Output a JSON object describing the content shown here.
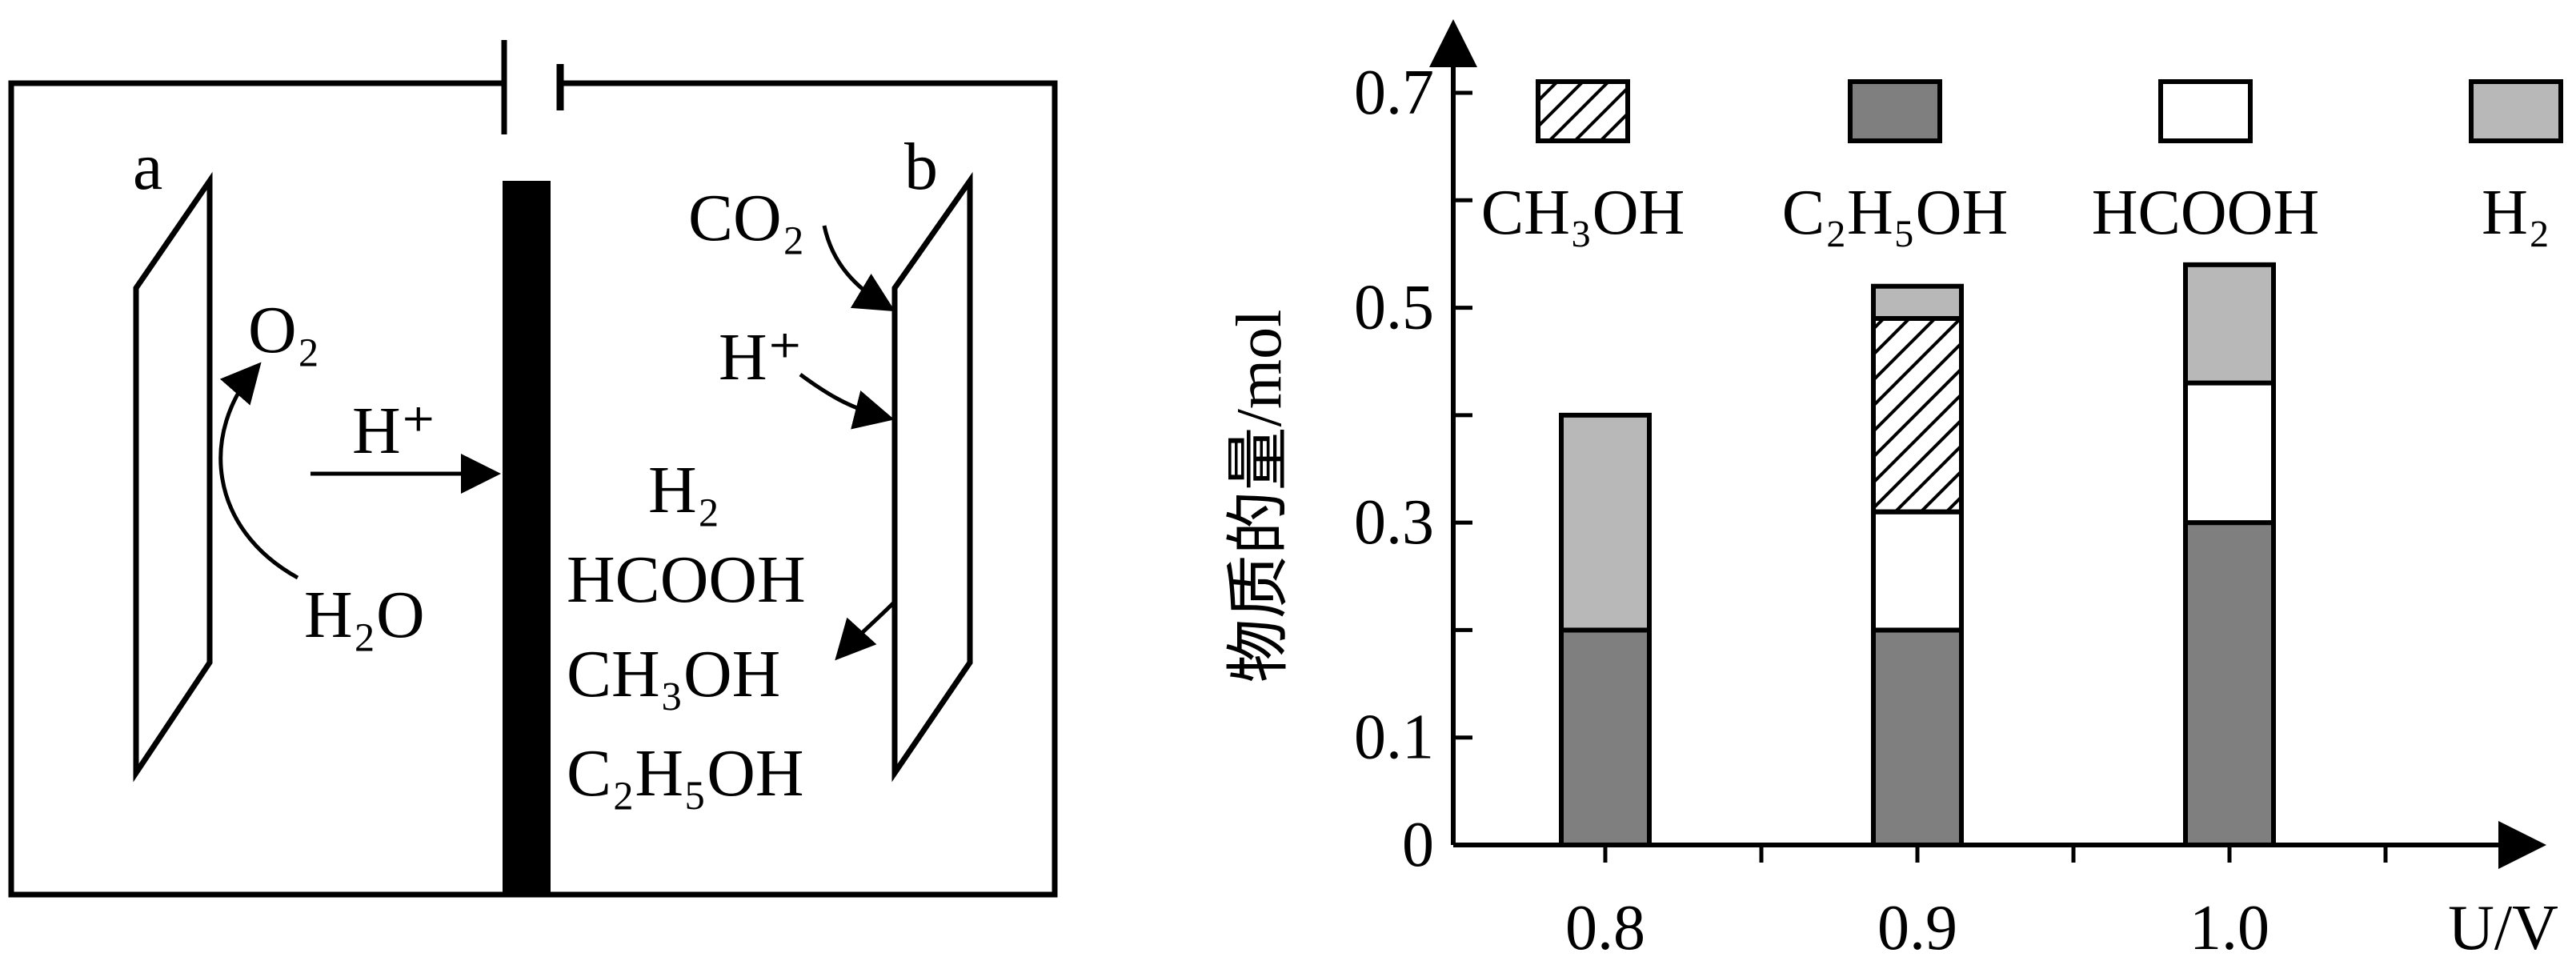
{
  "diagram": {
    "electrode_a": "a",
    "electrode_b": "b",
    "anode_reactant": "H₂O",
    "anode_product": "O₂",
    "ion": "H⁺",
    "cathode_reactant_co2": "CO₂",
    "cathode_reactant_h": "H⁺",
    "products": [
      "H₂",
      "HCOOH",
      "CH₃OH",
      "C₂H₅OH"
    ]
  },
  "chart_data": {
    "type": "bar",
    "stacked": true,
    "categories": [
      "0.8",
      "0.9",
      "1.0"
    ],
    "xlabel": "U/V",
    "ylabel": "物质的量/mol",
    "ylim": [
      0,
      0.7
    ],
    "yticks": [
      "0",
      "0.1",
      "0.3",
      "0.5",
      "0.7"
    ],
    "series": [
      {
        "name": "C₂H₅OH",
        "values": [
          0.2,
          0.2,
          0.3
        ],
        "color": "#7f7f7f",
        "pattern": "solid"
      },
      {
        "name": "HCOOH",
        "values": [
          0,
          0.11,
          0.13
        ],
        "color": "#ffffff",
        "pattern": "solid"
      },
      {
        "name": "CH₃OH",
        "values": [
          0,
          0.18,
          0
        ],
        "color": "#ffffff",
        "pattern": "hatch"
      },
      {
        "name": "H₂",
        "values": [
          0.2,
          0.03,
          0.11
        ],
        "color": "#b8b8b8",
        "pattern": "solid"
      }
    ],
    "legend": [
      "CH₃OH",
      "C₂H₅OH",
      "HCOOH",
      "H₂"
    ],
    "legend_placement": "top",
    "grid": false
  }
}
